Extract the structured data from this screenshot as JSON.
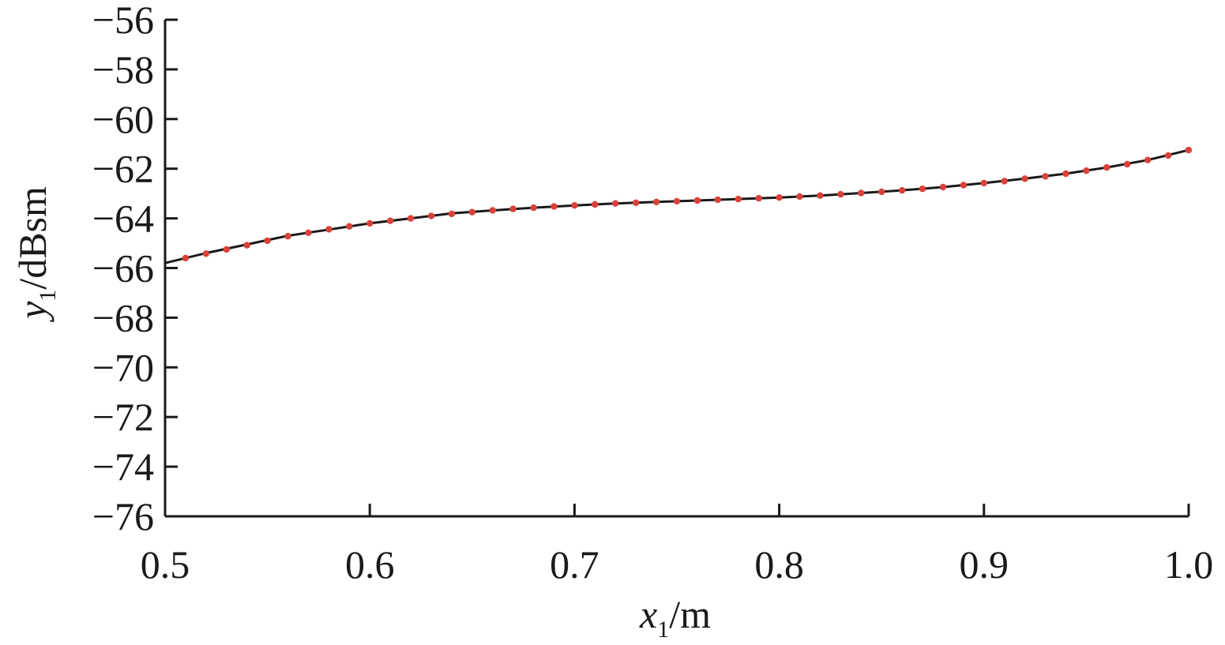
{
  "chart_data": {
    "type": "line",
    "xlabel": {
      "var": "x",
      "sub": "1",
      "unit": "/m"
    },
    "ylabel": {
      "var": "y",
      "sub": "1",
      "unit": "/dBsm"
    },
    "xlim": [
      0.5,
      1.0
    ],
    "ylim": [
      -76,
      -56
    ],
    "xticks": [
      0.5,
      0.6,
      0.7,
      0.8,
      0.9,
      1.0
    ],
    "xtick_labels": [
      "0.5",
      "0.6",
      "0.7",
      "0.8",
      "0.9",
      "1.0"
    ],
    "yticks": [
      -56,
      -58,
      -60,
      -62,
      -64,
      -66,
      -68,
      -70,
      -72,
      -74,
      -76
    ],
    "ytick_labels": [
      "−56",
      "−58",
      "−60",
      "−62",
      "−64",
      "−66",
      "−68",
      "−70",
      "−72",
      "−74",
      "−76"
    ],
    "grid": false,
    "series": [
      {
        "style": "line",
        "color": "#1a1a1a",
        "x": [
          0.5,
          0.52,
          0.54,
          0.56,
          0.58,
          0.6,
          0.62,
          0.64,
          0.66,
          0.68,
          0.7,
          0.72,
          0.74,
          0.76,
          0.78,
          0.8,
          0.82,
          0.84,
          0.86,
          0.88,
          0.9,
          0.92,
          0.94,
          0.96,
          0.98,
          1.0
        ],
        "y": [
          -65.8,
          -65.4,
          -65.05,
          -64.7,
          -64.45,
          -64.2,
          -64.0,
          -63.8,
          -63.68,
          -63.57,
          -63.48,
          -63.4,
          -63.34,
          -63.28,
          -63.22,
          -63.16,
          -63.08,
          -62.98,
          -62.87,
          -62.74,
          -62.58,
          -62.4,
          -62.2,
          -61.95,
          -61.65,
          -61.25
        ]
      },
      {
        "style": "markers",
        "color": "#d9423a",
        "x": [
          0.51,
          0.52,
          0.53,
          0.54,
          0.55,
          0.56,
          0.57,
          0.58,
          0.59,
          0.6,
          0.61,
          0.62,
          0.63,
          0.64,
          0.65,
          0.66,
          0.67,
          0.68,
          0.69,
          0.7,
          0.71,
          0.72,
          0.73,
          0.74,
          0.75,
          0.76,
          0.77,
          0.78,
          0.79,
          0.8,
          0.81,
          0.82,
          0.83,
          0.84,
          0.85,
          0.86,
          0.87,
          0.88,
          0.89,
          0.9,
          0.91,
          0.92,
          0.93,
          0.94,
          0.95,
          0.96,
          0.97,
          0.98,
          0.99,
          1.0
        ],
        "y": [
          -65.6,
          -65.42,
          -65.25,
          -65.08,
          -64.9,
          -64.72,
          -64.58,
          -64.44,
          -64.32,
          -64.2,
          -64.1,
          -64.0,
          -63.9,
          -63.82,
          -63.75,
          -63.68,
          -63.62,
          -63.57,
          -63.52,
          -63.48,
          -63.44,
          -63.4,
          -63.37,
          -63.34,
          -63.31,
          -63.28,
          -63.25,
          -63.22,
          -63.19,
          -63.16,
          -63.12,
          -63.08,
          -63.03,
          -62.98,
          -62.93,
          -62.87,
          -62.81,
          -62.74,
          -62.66,
          -62.58,
          -62.5,
          -62.4,
          -62.31,
          -62.2,
          -62.08,
          -61.95,
          -61.82,
          -61.65,
          -61.47,
          -61.25
        ]
      }
    ]
  }
}
